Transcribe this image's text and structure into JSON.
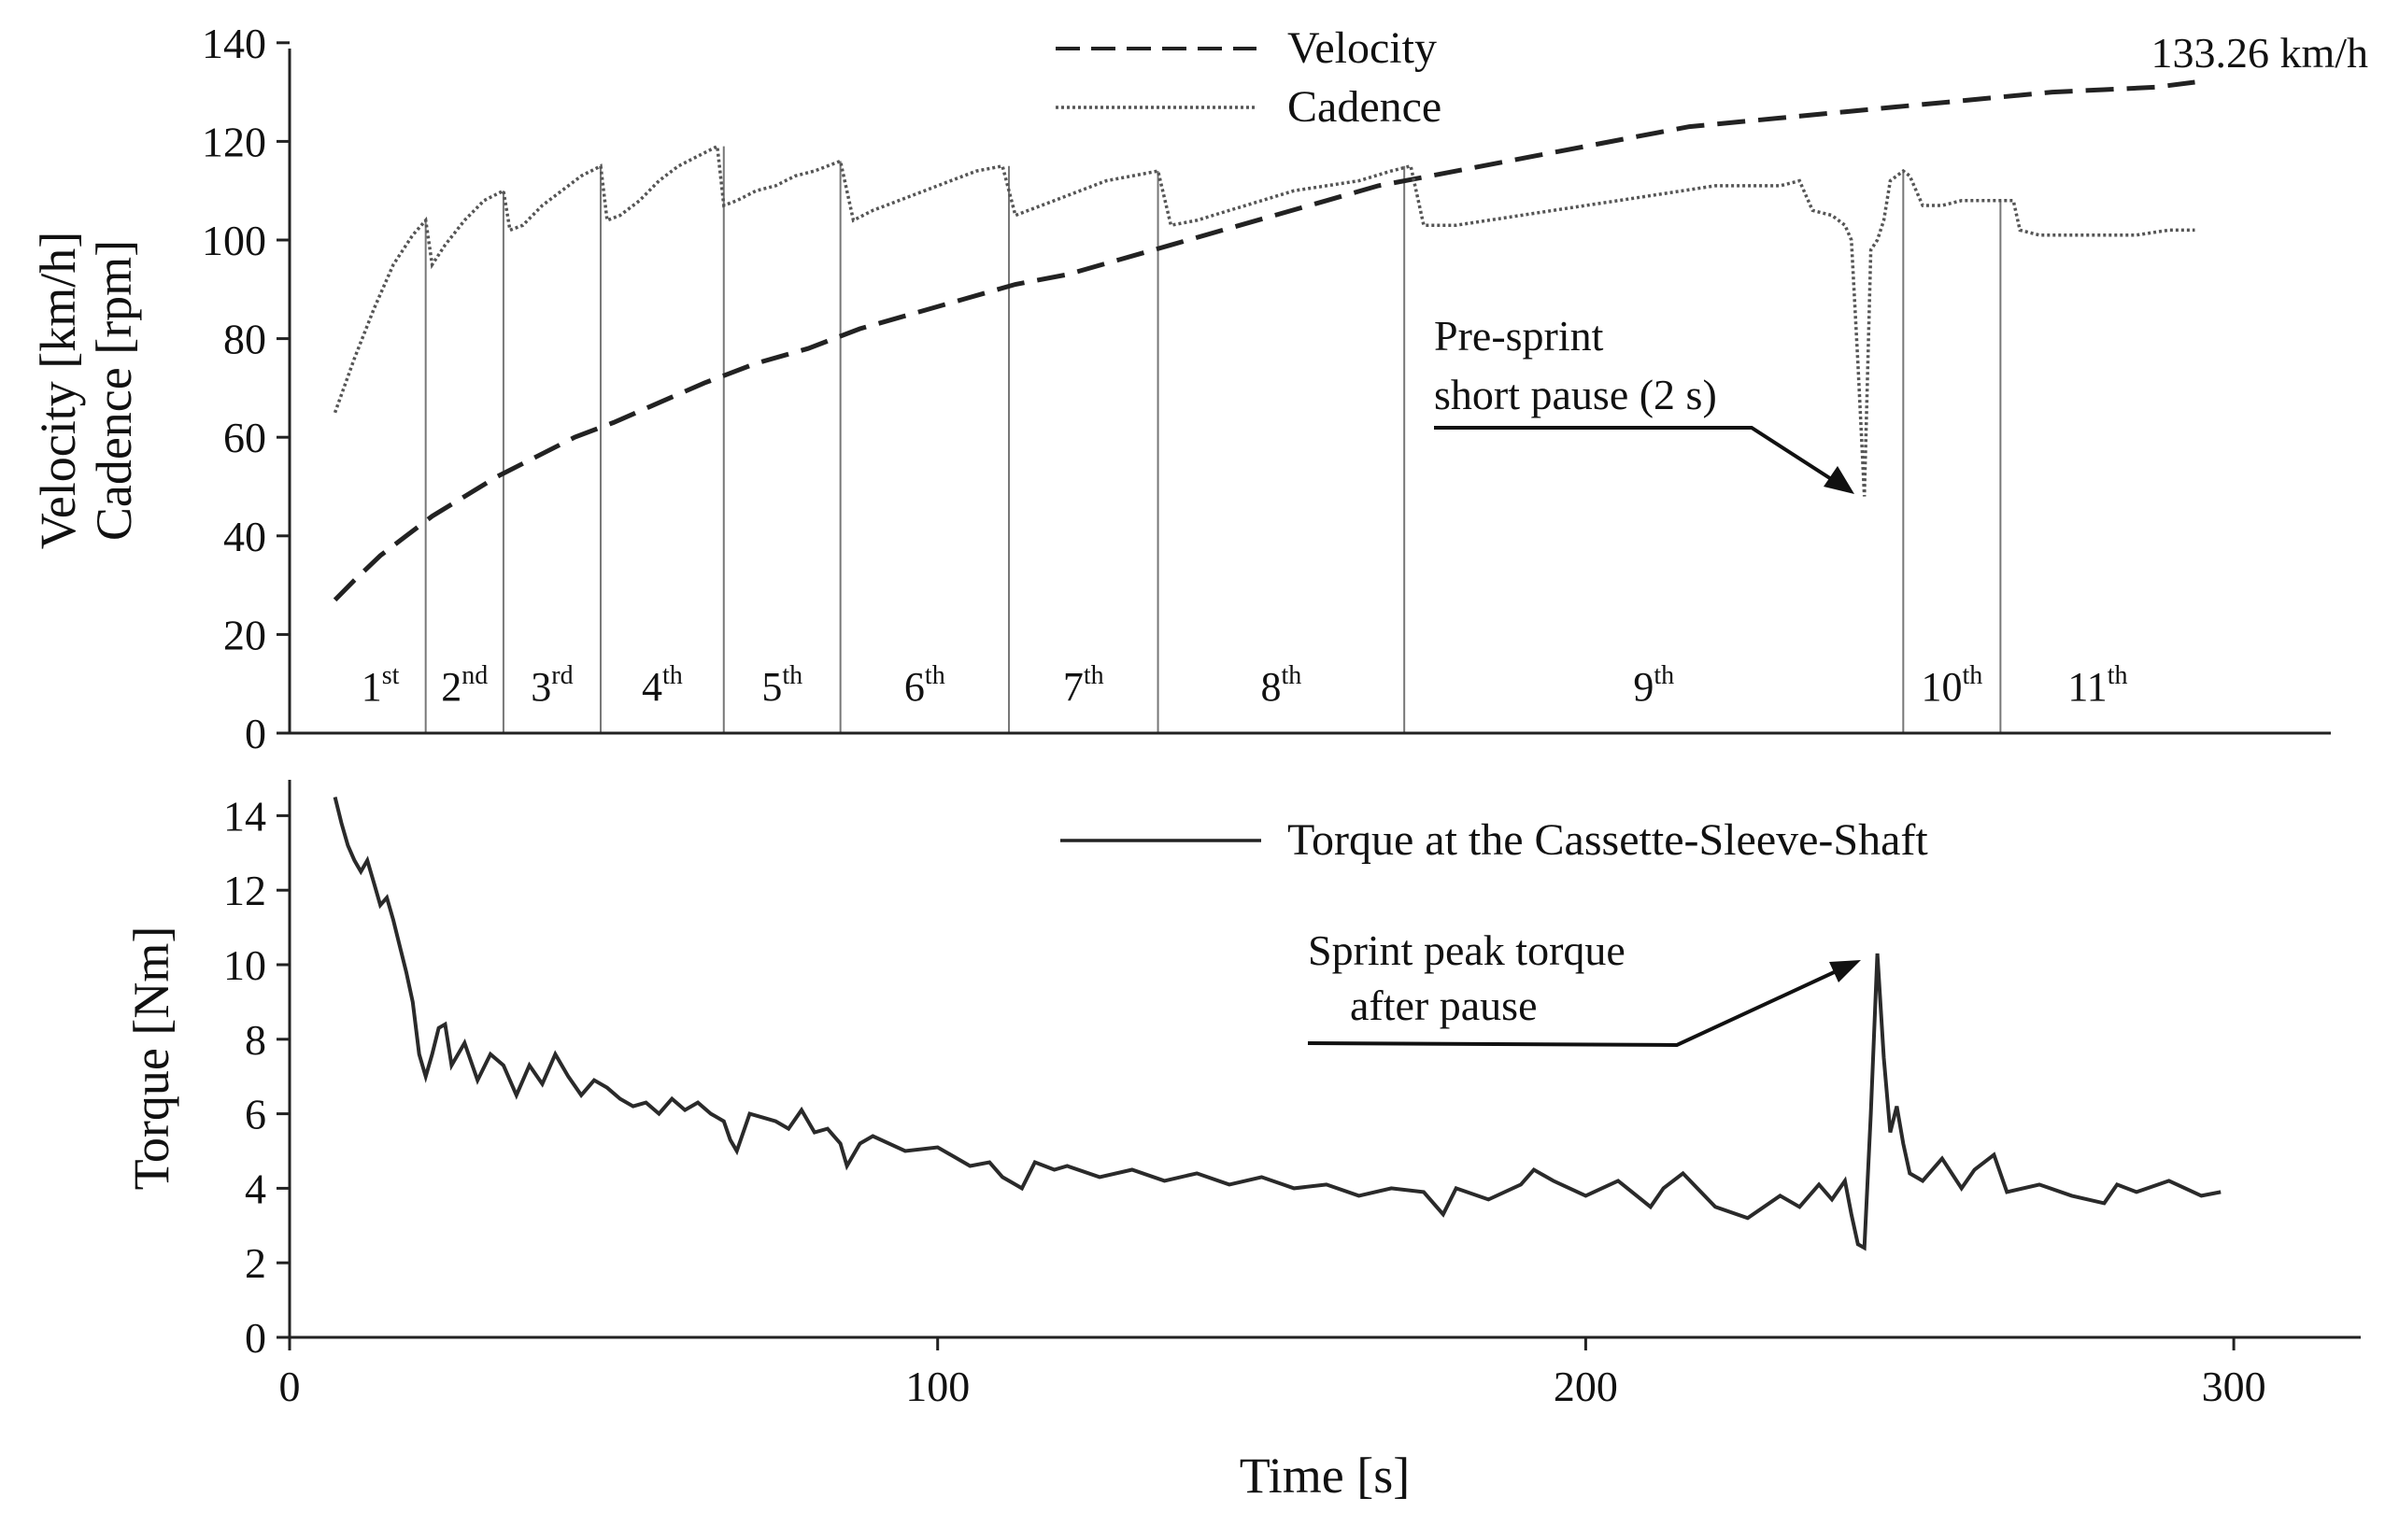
{
  "chart_data": [
    {
      "type": "line",
      "panel": "top",
      "title": "",
      "xlabel": "",
      "ylabel_lines": [
        "Velocity [km/h]",
        "Cadence [rpm]"
      ],
      "xlim": [
        0,
        320
      ],
      "ylim": [
        0,
        140
      ],
      "yticks": [
        0,
        20,
        40,
        60,
        80,
        100,
        120,
        140
      ],
      "grid": false,
      "legend_position": "top-center",
      "series": [
        {
          "name": "Velocity",
          "style": "dashed",
          "x": [
            7,
            10,
            14,
            18,
            22,
            27,
            32,
            38,
            44,
            50,
            57,
            64,
            72,
            80,
            88,
            96,
            104,
            112,
            120,
            128,
            136,
            144,
            152,
            160,
            168,
            176,
            184,
            192,
            200,
            208,
            216,
            224,
            232,
            240,
            248,
            256,
            264,
            272,
            280,
            288,
            294
          ],
          "values": [
            27,
            31,
            36,
            40,
            44,
            48,
            52,
            56,
            60,
            63,
            67,
            71,
            75,
            78,
            82,
            85,
            88,
            91,
            93,
            96,
            99,
            102,
            105,
            108,
            111,
            113,
            115,
            117,
            119,
            121,
            123,
            124,
            125,
            126,
            127,
            128,
            129,
            130,
            130.5,
            131,
            132
          ]
        },
        {
          "name": "Cadence",
          "style": "dotted",
          "x": [
            7,
            10,
            13,
            16,
            19,
            21,
            22,
            24,
            27,
            30,
            33,
            34,
            36,
            39,
            42,
            45,
            48,
            49,
            51,
            54,
            57,
            60,
            63,
            66,
            67,
            69,
            72,
            75,
            78,
            81,
            85,
            87,
            90,
            94,
            98,
            102,
            106,
            110,
            112,
            114,
            118,
            122,
            126,
            130,
            134,
            136,
            140,
            145,
            150,
            155,
            160,
            165,
            170,
            173,
            175,
            180,
            185,
            190,
            195,
            200,
            205,
            210,
            215,
            220,
            225,
            230,
            233,
            235,
            238,
            240,
            241,
            242,
            243,
            244,
            245,
            246,
            247,
            249,
            250,
            252,
            255,
            258,
            262,
            266,
            267,
            270,
            275,
            280,
            285,
            290,
            294
          ],
          "values": [
            65,
            76,
            86,
            95,
            101,
            104,
            95,
            99,
            104,
            108,
            110,
            102,
            103,
            107,
            110,
            113,
            115,
            104,
            105,
            108,
            112,
            115,
            117,
            119,
            107,
            108,
            110,
            111,
            113,
            114,
            116,
            104,
            106,
            108,
            110,
            112,
            114,
            115,
            105,
            106,
            108,
            110,
            112,
            113,
            114,
            103,
            104,
            106,
            108,
            110,
            111,
            112,
            114,
            115,
            103,
            103,
            104,
            105,
            106,
            107,
            108,
            109,
            110,
            111,
            111,
            111,
            112,
            106,
            105,
            103,
            100,
            75,
            48,
            98,
            100,
            104,
            112,
            114,
            113,
            107,
            107,
            108,
            108,
            108,
            102,
            101,
            101,
            101,
            101,
            102,
            102
          ]
        }
      ],
      "gear_boundaries": [
        21,
        33,
        48,
        67,
        85,
        111,
        134,
        172,
        249,
        264
      ],
      "gears": [
        {
          "n": "1",
          "suffix": "st"
        },
        {
          "n": "2",
          "suffix": "nd"
        },
        {
          "n": "3",
          "suffix": "rd"
        },
        {
          "n": "4",
          "suffix": "th"
        },
        {
          "n": "5",
          "suffix": "th"
        },
        {
          "n": "6",
          "suffix": "th"
        },
        {
          "n": "7",
          "suffix": "th"
        },
        {
          "n": "8",
          "suffix": "th"
        },
        {
          "n": "9",
          "suffix": "th"
        },
        {
          "n": "10",
          "suffix": "th"
        },
        {
          "n": "11",
          "suffix": "th"
        }
      ],
      "annotations": {
        "max_velocity": "133.26 km/h",
        "pause_lines": [
          "Pre-sprint",
          "short pause (2 s)"
        ]
      }
    },
    {
      "type": "line",
      "panel": "bottom",
      "title": "",
      "xlabel": "Time [s]",
      "ylabel": "Torque [Nm]",
      "xlim": [
        0,
        320
      ],
      "ylim": [
        0,
        15
      ],
      "yticks": [
        0,
        2,
        4,
        6,
        8,
        10,
        12,
        14
      ],
      "xticks": [
        0,
        100,
        200,
        300
      ],
      "grid": false,
      "legend_position": "top-center",
      "series": [
        {
          "name": "Torque at the Cassette-Sleeve-Shaft",
          "style": "solid",
          "x": [
            7,
            8,
            9,
            10,
            11,
            12,
            13,
            14,
            15,
            16,
            17,
            18,
            19,
            20,
            21,
            22,
            23,
            24,
            25,
            27,
            29,
            31,
            33,
            35,
            37,
            39,
            41,
            43,
            45,
            47,
            49,
            51,
            53,
            55,
            57,
            59,
            61,
            63,
            65,
            67,
            68,
            69,
            71,
            73,
            75,
            77,
            79,
            81,
            83,
            85,
            86,
            88,
            90,
            95,
            100,
            105,
            108,
            110,
            113,
            115,
            118,
            120,
            125,
            130,
            135,
            140,
            145,
            150,
            155,
            160,
            165,
            170,
            175,
            178,
            180,
            185,
            190,
            192,
            195,
            200,
            205,
            210,
            212,
            215,
            220,
            225,
            230,
            233,
            236,
            238,
            240,
            241,
            242,
            243,
            244,
            245,
            246,
            247,
            248,
            249,
            250,
            252,
            255,
            258,
            260,
            263,
            265,
            270,
            275,
            280,
            282,
            285,
            290,
            295,
            298
          ],
          "values": [
            14.5,
            13.8,
            13.2,
            12.8,
            12.5,
            12.8,
            12.2,
            11.6,
            11.8,
            11.2,
            10.5,
            9.8,
            9.0,
            7.6,
            7.0,
            7.6,
            8.3,
            8.4,
            7.3,
            7.9,
            6.9,
            7.6,
            7.3,
            6.5,
            7.3,
            6.8,
            7.6,
            7.0,
            6.5,
            6.9,
            6.7,
            6.4,
            6.2,
            6.3,
            6.0,
            6.4,
            6.1,
            6.3,
            6.0,
            5.8,
            5.3,
            5.0,
            6.0,
            5.9,
            5.8,
            5.6,
            6.1,
            5.5,
            5.6,
            5.2,
            4.6,
            5.2,
            5.4,
            5.0,
            5.1,
            4.6,
            4.7,
            4.3,
            4.0,
            4.7,
            4.5,
            4.6,
            4.3,
            4.5,
            4.2,
            4.4,
            4.1,
            4.3,
            4.0,
            4.1,
            3.8,
            4.0,
            3.9,
            3.3,
            4.0,
            3.7,
            4.1,
            4.5,
            4.2,
            3.8,
            4.2,
            3.5,
            4.0,
            4.4,
            3.5,
            3.2,
            3.8,
            3.5,
            4.1,
            3.7,
            4.2,
            3.3,
            2.5,
            2.4,
            6.0,
            10.3,
            7.5,
            5.5,
            6.2,
            5.2,
            4.4,
            4.2,
            4.8,
            4.0,
            4.5,
            4.9,
            3.9,
            4.1,
            3.8,
            3.6,
            4.1,
            3.9,
            4.2,
            3.8,
            3.9
          ]
        }
      ],
      "annotations": {
        "peak_lines": [
          "Sprint peak torque",
          "after pause"
        ]
      }
    }
  ]
}
